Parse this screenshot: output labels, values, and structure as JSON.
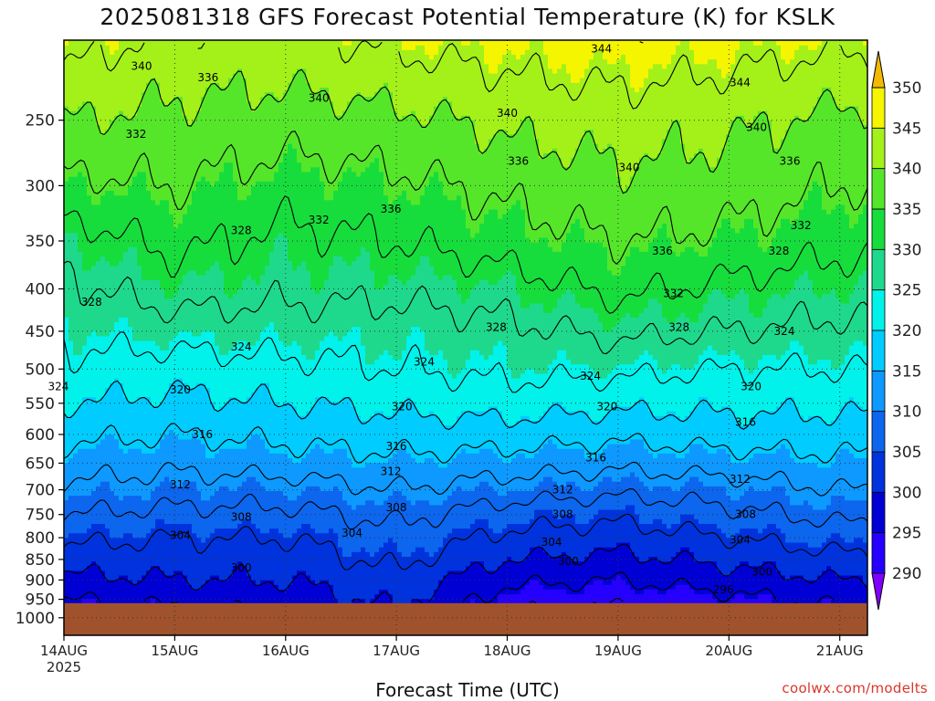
{
  "title": "2025081318 GFS Forecast Potential Temperature (K) for KSLK",
  "x_axis_title": "Forecast Time (UTC)",
  "credit": "coolwx.com/modelts",
  "chart_data": {
    "type": "heatmap",
    "subtype": "filled-contour time-height cross section",
    "title": "2025081318 GFS Forecast Potential Temperature (K) for KSLK",
    "xlabel": "Forecast Time (UTC)",
    "ylabel": "",
    "x_tick_labels": [
      "14AUG",
      "15AUG",
      "16AUG",
      "17AUG",
      "18AUG",
      "19AUG",
      "20AUG",
      "21AUG"
    ],
    "x_year_label": "2025",
    "x_range_days": [
      0,
      7.25
    ],
    "y_unit": "hPa",
    "y_scale": "log-pressure, inverted",
    "y_range_hpa": [
      1050,
      200
    ],
    "y_ticks_hpa": [
      250,
      300,
      350,
      400,
      450,
      500,
      550,
      600,
      650,
      700,
      750,
      800,
      850,
      900,
      950,
      1000
    ],
    "ground_level_hpa": 960,
    "grid": true,
    "colorbar": {
      "levels": [
        290,
        295,
        300,
        305,
        310,
        315,
        320,
        325,
        330,
        335,
        340,
        345,
        350
      ],
      "colors": [
        "#7f00ff",
        "#2600ff",
        "#0000d4",
        "#0033dd",
        "#0c66ee",
        "#0d99ff",
        "#00ccff",
        "#00f2ea",
        "#1ed98c",
        "#16dd3c",
        "#55e62a",
        "#a4f019",
        "#f5f500",
        "#f2ba00"
      ],
      "extend": "both",
      "placement": "right"
    },
    "profile_hours": [
      0,
      24,
      48,
      72,
      96,
      120,
      144,
      168
    ],
    "profile_pressures": [
      950,
      900,
      850,
      800,
      750,
      700,
      650,
      600,
      550,
      500,
      450,
      400,
      350,
      300,
      250,
      200
    ],
    "theta_profiles": [
      [
        296,
        299,
        302,
        305,
        308,
        311,
        314,
        317,
        320,
        323,
        325,
        327,
        330,
        335,
        340,
        346
      ],
      [
        297,
        300,
        302,
        304,
        307,
        310,
        313,
        316,
        319,
        322,
        326,
        330,
        333,
        336,
        339,
        343
      ],
      [
        298,
        300,
        302,
        304,
        307,
        310,
        314,
        317,
        320,
        323,
        326,
        329,
        331,
        334,
        338,
        343
      ],
      [
        301,
        303,
        305,
        307,
        309,
        312,
        315,
        318,
        321,
        324,
        326,
        329,
        332,
        335,
        339,
        345
      ],
      [
        294,
        297,
        300,
        303,
        306,
        310,
        314,
        318,
        322,
        325,
        327,
        330,
        334,
        337,
        341,
        346
      ],
      [
        293,
        296,
        299,
        302,
        305,
        309,
        313,
        317,
        321,
        325,
        329,
        333,
        336,
        339,
        342,
        347
      ],
      [
        295,
        298,
        301,
        304,
        307,
        310,
        314,
        318,
        321,
        324,
        328,
        331,
        335,
        338,
        341,
        346
      ],
      [
        297,
        300,
        303,
        306,
        309,
        312,
        315,
        318,
        321,
        324,
        327,
        330,
        333,
        336,
        339,
        345
      ]
    ],
    "contour_labels": [
      {
        "text": "340",
        "day": 0.7,
        "hpa": 215
      },
      {
        "text": "336",
        "day": 1.3,
        "hpa": 222
      },
      {
        "text": "332",
        "day": 0.65,
        "hpa": 260
      },
      {
        "text": "328",
        "day": 1.6,
        "hpa": 340
      },
      {
        "text": "328",
        "day": 0.25,
        "hpa": 415
      },
      {
        "text": "324",
        "day": 1.6,
        "hpa": 470
      },
      {
        "text": "320",
        "day": 1.05,
        "hpa": 530
      },
      {
        "text": "316",
        "day": 1.25,
        "hpa": 600
      },
      {
        "text": "312",
        "day": 1.05,
        "hpa": 690
      },
      {
        "text": "308",
        "day": 1.6,
        "hpa": 755
      },
      {
        "text": "304",
        "day": 1.05,
        "hpa": 795
      },
      {
        "text": "300",
        "day": 1.6,
        "hpa": 870
      },
      {
        "text": "324",
        "day": -0.05,
        "hpa": 525
      },
      {
        "text": "340",
        "day": 2.3,
        "hpa": 235
      },
      {
        "text": "332",
        "day": 2.3,
        "hpa": 330
      },
      {
        "text": "336",
        "day": 2.95,
        "hpa": 320
      },
      {
        "text": "316",
        "day": 3.0,
        "hpa": 620
      },
      {
        "text": "312",
        "day": 2.95,
        "hpa": 665
      },
      {
        "text": "320",
        "day": 3.05,
        "hpa": 555
      },
      {
        "text": "308",
        "day": 3.0,
        "hpa": 735
      },
      {
        "text": "304",
        "day": 2.6,
        "hpa": 790
      },
      {
        "text": "324",
        "day": 3.25,
        "hpa": 490
      },
      {
        "text": "344",
        "day": 4.85,
        "hpa": 205
      },
      {
        "text": "340",
        "day": 4.0,
        "hpa": 245
      },
      {
        "text": "336",
        "day": 4.1,
        "hpa": 280
      },
      {
        "text": "328",
        "day": 3.9,
        "hpa": 445
      },
      {
        "text": "320",
        "day": 4.9,
        "hpa": 555
      },
      {
        "text": "316",
        "day": 4.8,
        "hpa": 640
      },
      {
        "text": "312",
        "day": 4.5,
        "hpa": 700
      },
      {
        "text": "308",
        "day": 4.5,
        "hpa": 750
      },
      {
        "text": "304",
        "day": 4.4,
        "hpa": 810
      },
      {
        "text": "300",
        "day": 4.55,
        "hpa": 855
      },
      {
        "text": "324",
        "day": 4.75,
        "hpa": 510
      },
      {
        "text": "340",
        "day": 5.1,
        "hpa": 285
      },
      {
        "text": "336",
        "day": 5.4,
        "hpa": 360
      },
      {
        "text": "332",
        "day": 5.5,
        "hpa": 405
      },
      {
        "text": "328",
        "day": 5.55,
        "hpa": 445
      },
      {
        "text": "320",
        "day": 6.2,
        "hpa": 525
      },
      {
        "text": "316",
        "day": 6.15,
        "hpa": 580
      },
      {
        "text": "312",
        "day": 6.1,
        "hpa": 680
      },
      {
        "text": "308",
        "day": 6.15,
        "hpa": 750
      },
      {
        "text": "304",
        "day": 6.1,
        "hpa": 805
      },
      {
        "text": "300",
        "day": 6.3,
        "hpa": 880
      },
      {
        "text": "296",
        "day": 5.95,
        "hpa": 925
      },
      {
        "text": "344",
        "day": 6.1,
        "hpa": 225
      },
      {
        "text": "340",
        "day": 6.25,
        "hpa": 255
      },
      {
        "text": "336",
        "day": 6.55,
        "hpa": 280
      },
      {
        "text": "332",
        "day": 6.65,
        "hpa": 335
      },
      {
        "text": "328",
        "day": 6.45,
        "hpa": 360
      },
      {
        "text": "324",
        "day": 6.5,
        "hpa": 450
      }
    ]
  }
}
